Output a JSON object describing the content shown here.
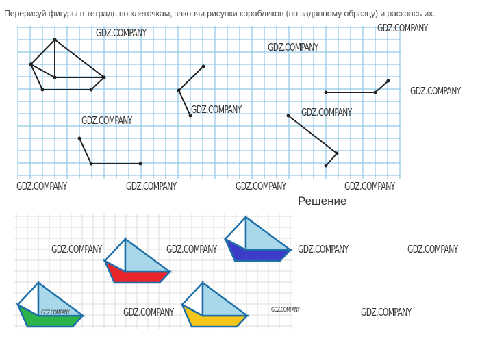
{
  "task_text": "Перерисуй фигуры в тетрадь по клеточкам, закончи рисунки корабликов (по заданному образцу) и раскрась их.",
  "solution_heading": "Решение",
  "watermark": "GDZ.COMPANY",
  "colors": {
    "grid_top": "#8ec8e8",
    "grid_bottom": "#dddddd",
    "outline": "#1f6fa8",
    "sail": "#a8d8ea",
    "red": "#e8252a",
    "blue": "#3c3cc8",
    "green": "#2eb24a",
    "yellow": "#f5c518"
  },
  "boats": [
    {
      "hull_color": "red"
    },
    {
      "hull_color": "blue"
    },
    {
      "hull_color": "green"
    },
    {
      "hull_color": "yellow"
    }
  ]
}
